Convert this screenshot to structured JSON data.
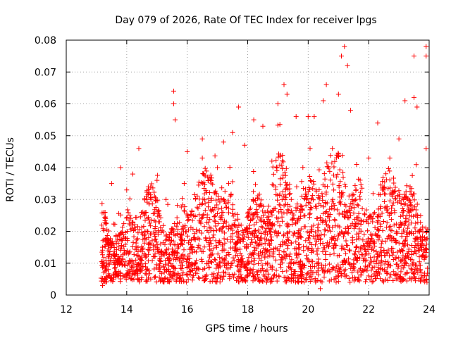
{
  "chart_data": {
    "type": "scatter",
    "title": "Day 079 of 2026, Rate Of TEC Index for receiver lpgs",
    "xlabel": "GPS time / hours",
    "ylabel": "ROTI / TECUs",
    "xlim": [
      12,
      24
    ],
    "ylim": [
      0,
      0.08
    ],
    "xticks": [
      12,
      14,
      16,
      18,
      20,
      22,
      24
    ],
    "yticks": [
      0,
      0.01,
      0.02,
      0.03,
      0.04,
      0.05,
      0.06,
      0.07,
      0.08
    ],
    "xtick_labels": [
      "12",
      "14",
      "16",
      "18",
      "20",
      "22",
      "24"
    ],
    "ytick_labels": [
      "0",
      "0.01",
      "0.02",
      "0.03",
      "0.04",
      "0.05",
      "0.06",
      "0.07",
      "0.08"
    ],
    "grid": true,
    "marker": "+",
    "color": "#ff0000",
    "series": [
      {
        "name": "ROTI",
        "time_start": 13.15,
        "time_end": 23.95,
        "description_points": [
          {
            "x": 13.2,
            "y": 0.015
          },
          {
            "x": 13.2,
            "y": 0.003
          },
          {
            "x": 13.3,
            "y": 0.024
          },
          {
            "x": 13.5,
            "y": 0.035
          },
          {
            "x": 13.8,
            "y": 0.04
          },
          {
            "x": 14.0,
            "y": 0.033
          },
          {
            "x": 14.2,
            "y": 0.038
          },
          {
            "x": 14.4,
            "y": 0.046
          },
          {
            "x": 14.6,
            "y": 0.025
          },
          {
            "x": 15.0,
            "y": 0.036
          },
          {
            "x": 15.3,
            "y": 0.03
          },
          {
            "x": 15.55,
            "y": 0.064
          },
          {
            "x": 15.55,
            "y": 0.06
          },
          {
            "x": 15.6,
            "y": 0.055
          },
          {
            "x": 15.9,
            "y": 0.035
          },
          {
            "x": 16.0,
            "y": 0.045
          },
          {
            "x": 16.5,
            "y": 0.049
          },
          {
            "x": 16.5,
            "y": 0.043
          },
          {
            "x": 17.0,
            "y": 0.04
          },
          {
            "x": 17.2,
            "y": 0.048
          },
          {
            "x": 17.5,
            "y": 0.051
          },
          {
            "x": 17.7,
            "y": 0.059
          },
          {
            "x": 17.9,
            "y": 0.047
          },
          {
            "x": 18.2,
            "y": 0.055
          },
          {
            "x": 18.5,
            "y": 0.053
          },
          {
            "x": 18.8,
            "y": 0.042
          },
          {
            "x": 19.0,
            "y": 0.06
          },
          {
            "x": 19.2,
            "y": 0.066
          },
          {
            "x": 19.3,
            "y": 0.063
          },
          {
            "x": 19.6,
            "y": 0.056
          },
          {
            "x": 20.0,
            "y": 0.056
          },
          {
            "x": 20.2,
            "y": 0.056
          },
          {
            "x": 20.5,
            "y": 0.061
          },
          {
            "x": 20.6,
            "y": 0.066
          },
          {
            "x": 20.4,
            "y": 0.002
          },
          {
            "x": 21.0,
            "y": 0.063
          },
          {
            "x": 21.1,
            "y": 0.075
          },
          {
            "x": 21.2,
            "y": 0.078
          },
          {
            "x": 21.3,
            "y": 0.072
          },
          {
            "x": 21.4,
            "y": 0.058
          },
          {
            "x": 21.6,
            "y": 0.041
          },
          {
            "x": 22.0,
            "y": 0.043
          },
          {
            "x": 22.3,
            "y": 0.054
          },
          {
            "x": 22.5,
            "y": 0.033
          },
          {
            "x": 22.7,
            "y": 0.043
          },
          {
            "x": 23.0,
            "y": 0.049
          },
          {
            "x": 23.2,
            "y": 0.061
          },
          {
            "x": 23.5,
            "y": 0.062
          },
          {
            "x": 23.5,
            "y": 0.075
          },
          {
            "x": 23.6,
            "y": 0.059
          },
          {
            "x": 23.9,
            "y": 0.078
          },
          {
            "x": 23.9,
            "y": 0.075
          },
          {
            "x": 23.9,
            "y": 0.046
          },
          {
            "x": 23.9,
            "y": 0.005
          }
        ]
      }
    ]
  }
}
